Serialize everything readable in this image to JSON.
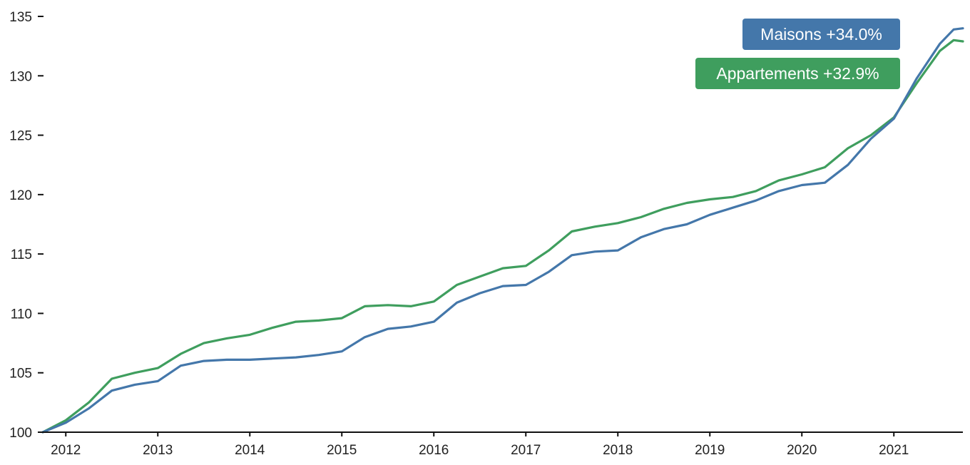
{
  "chart_data": {
    "type": "line",
    "title": "",
    "xlabel": "",
    "ylabel": "",
    "x_ticks": [
      "2012",
      "2013",
      "2014",
      "2015",
      "2016",
      "2017",
      "2018",
      "2019",
      "2020",
      "2021"
    ],
    "y_ticks": [
      "100",
      "105",
      "110",
      "115",
      "120",
      "125",
      "130",
      "135"
    ],
    "xlim": [
      2011.75,
      2021.75
    ],
    "ylim": [
      100,
      135
    ],
    "grid": false,
    "legend_placement": "top-right",
    "series": [
      {
        "name": "Maisons",
        "label": "Maisons +34.0%",
        "color": "#4477aa",
        "x": [
          2011.75,
          2012.0,
          2012.25,
          2012.5,
          2012.75,
          2013.0,
          2013.25,
          2013.5,
          2013.75,
          2014.0,
          2014.25,
          2014.5,
          2014.75,
          2015.0,
          2015.25,
          2015.5,
          2015.75,
          2016.0,
          2016.25,
          2016.5,
          2016.75,
          2017.0,
          2017.25,
          2017.5,
          2017.75,
          2018.0,
          2018.25,
          2018.5,
          2018.75,
          2019.0,
          2019.25,
          2019.5,
          2019.75,
          2020.0,
          2020.25,
          2020.5,
          2020.75,
          2021.0,
          2021.25,
          2021.5,
          2021.65,
          2021.75
        ],
        "values": [
          100.0,
          100.8,
          102.0,
          103.5,
          104.0,
          104.3,
          105.6,
          106.0,
          106.1,
          106.1,
          106.2,
          106.3,
          106.5,
          106.8,
          108.0,
          108.7,
          108.9,
          109.3,
          110.9,
          111.7,
          112.3,
          112.4,
          113.5,
          114.9,
          115.2,
          115.3,
          116.4,
          117.1,
          117.5,
          118.3,
          118.9,
          119.5,
          120.3,
          120.8,
          121.0,
          122.5,
          124.7,
          126.4,
          129.8,
          132.7,
          133.9,
          134.0
        ]
      },
      {
        "name": "Appartements",
        "label": "Appartements +32.9%",
        "color": "#3f9e5e",
        "x": [
          2011.75,
          2012.0,
          2012.25,
          2012.5,
          2012.75,
          2013.0,
          2013.25,
          2013.5,
          2013.75,
          2014.0,
          2014.25,
          2014.5,
          2014.75,
          2015.0,
          2015.25,
          2015.5,
          2015.75,
          2016.0,
          2016.25,
          2016.5,
          2016.75,
          2017.0,
          2017.25,
          2017.5,
          2017.75,
          2018.0,
          2018.25,
          2018.5,
          2018.75,
          2019.0,
          2019.25,
          2019.5,
          2019.75,
          2020.0,
          2020.25,
          2020.5,
          2020.75,
          2021.0,
          2021.25,
          2021.5,
          2021.65,
          2021.75
        ],
        "values": [
          100.0,
          101.0,
          102.5,
          104.5,
          105.0,
          105.4,
          106.6,
          107.5,
          107.9,
          108.2,
          108.8,
          109.3,
          109.4,
          109.6,
          110.6,
          110.7,
          110.6,
          111.0,
          112.4,
          113.1,
          113.8,
          114.0,
          115.3,
          116.9,
          117.3,
          117.6,
          118.1,
          118.8,
          119.3,
          119.6,
          119.8,
          120.3,
          121.2,
          121.7,
          122.3,
          123.9,
          125.0,
          126.5,
          129.4,
          132.1,
          133.0,
          132.9
        ]
      }
    ]
  }
}
